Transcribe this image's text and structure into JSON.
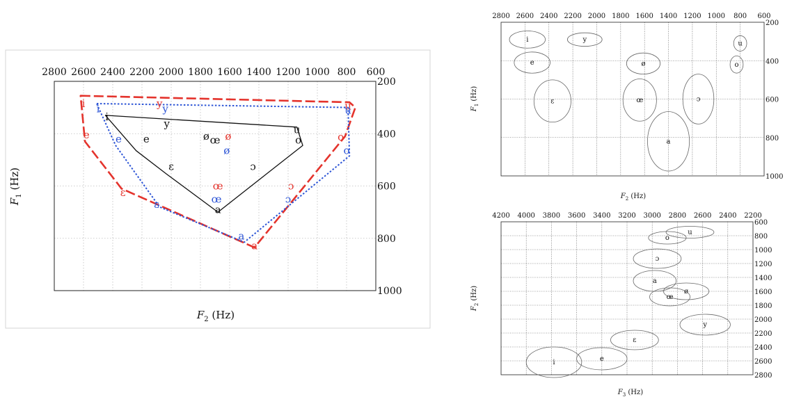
{
  "chart_data": [
    {
      "type": "scatter",
      "xlabel_main": "F",
      "xlabel_sub": "2",
      "xlabel_unit": " (Hz)",
      "ylabel_main": "F",
      "ylabel_sub": "1",
      "ylabel_unit": " (Hz)",
      "xlim": [
        2800,
        600
      ],
      "ylim": [
        200,
        1000
      ],
      "x_ticks": [
        2800,
        2600,
        2400,
        2200,
        2000,
        1800,
        1600,
        1400,
        1200,
        1000,
        800,
        600
      ],
      "y_ticks": [
        200,
        400,
        600,
        800,
        1000
      ],
      "grid": true,
      "colors": {
        "red": "#e4332c",
        "blue": "#2d55d6",
        "black": "#111111"
      },
      "series": [
        {
          "color": "#e4332c",
          "style": "dashed",
          "outline": [
            [
              2620,
              255
            ],
            [
              780,
              280
            ],
            [
              740,
              300
            ],
            [
              810,
              410
            ],
            [
              1430,
              835
            ],
            [
              2340,
              610
            ],
            [
              2590,
              430
            ]
          ],
          "points": [
            {
              "label": "i",
              "x": 2600,
              "y": 285
            },
            {
              "label": "y",
              "x": 2080,
              "y": 285
            },
            {
              "label": "u",
              "x": 790,
              "y": 295
            },
            {
              "label": "e",
              "x": 2580,
              "y": 405
            },
            {
              "label": "ø",
              "x": 1610,
              "y": 410
            },
            {
              "label": "o",
              "x": 840,
              "y": 412
            },
            {
              "label": "ɛ",
              "x": 2330,
              "y": 625
            },
            {
              "label": "œ",
              "x": 1680,
              "y": 600
            },
            {
              "label": "ɔ",
              "x": 1180,
              "y": 600
            },
            {
              "label": "a",
              "x": 1430,
              "y": 828
            }
          ]
        },
        {
          "color": "#2d55d6",
          "style": "dotted",
          "outline": [
            [
              2510,
              285
            ],
            [
              790,
              300
            ],
            [
              780,
              485
            ],
            [
              1500,
              815
            ],
            [
              2080,
              680
            ],
            [
              2380,
              445
            ]
          ],
          "points": [
            {
              "label": "i",
              "x": 2500,
              "y": 305
            },
            {
              "label": "y",
              "x": 2040,
              "y": 305
            },
            {
              "label": "u",
              "x": 790,
              "y": 310
            },
            {
              "label": "e",
              "x": 2360,
              "y": 420
            },
            {
              "label": "ø",
              "x": 1620,
              "y": 465
            },
            {
              "label": "o",
              "x": 800,
              "y": 465
            },
            {
              "label": "ɛ",
              "x": 2100,
              "y": 670
            },
            {
              "label": "œ",
              "x": 1690,
              "y": 650
            },
            {
              "label": "ɔ",
              "x": 1200,
              "y": 650
            },
            {
              "label": "a",
              "x": 1520,
              "y": 792
            }
          ]
        },
        {
          "color": "#111111",
          "style": "solid",
          "outline": [
            [
              2450,
              330
            ],
            [
              1140,
              375
            ],
            [
              1100,
              445
            ],
            [
              1680,
              700
            ],
            [
              2030,
              555
            ],
            [
              2240,
              465
            ]
          ],
          "points": [
            {
              "label": "i",
              "x": 2440,
              "y": 335
            },
            {
              "label": "y",
              "x": 2030,
              "y": 362
            },
            {
              "label": "u",
              "x": 1140,
              "y": 385
            },
            {
              "label": "e",
              "x": 2170,
              "y": 420
            },
            {
              "label": "ø",
              "x": 1760,
              "y": 410
            },
            {
              "label": "œ",
              "x": 1700,
              "y": 425
            },
            {
              "label": "o",
              "x": 1130,
              "y": 425
            },
            {
              "label": "ɛ",
              "x": 2000,
              "y": 525
            },
            {
              "label": "ɔ",
              "x": 1440,
              "y": 525
            },
            {
              "label": "a",
              "x": 1680,
              "y": 690
            }
          ]
        }
      ]
    },
    {
      "type": "scatter",
      "xlabel_main": "F",
      "xlabel_sub": "2",
      "xlabel_unit": " (Hz)",
      "ylabel_main": "F",
      "ylabel_sub": "1",
      "ylabel_unit": " (Hz)",
      "xlim": [
        2800,
        600
      ],
      "ylim": [
        200,
        1000
      ],
      "x_ticks": [
        2800,
        2600,
        2400,
        2200,
        2000,
        1800,
        1600,
        1400,
        1200,
        1000,
        800,
        600
      ],
      "y_ticks": [
        200,
        400,
        600,
        800,
        1000
      ],
      "grid": true,
      "points": [
        {
          "label": "i",
          "x": 2580,
          "y": 290,
          "sdx": 150,
          "sdy": 45
        },
        {
          "label": "y",
          "x": 2100,
          "y": 290,
          "sdx": 145,
          "sdy": 35
        },
        {
          "label": "u",
          "x": 800,
          "y": 310,
          "sdx": 55,
          "sdy": 40
        },
        {
          "label": "e",
          "x": 2540,
          "y": 410,
          "sdx": 150,
          "sdy": 55
        },
        {
          "label": "ø",
          "x": 1610,
          "y": 415,
          "sdx": 140,
          "sdy": 55
        },
        {
          "label": "o",
          "x": 830,
          "y": 420,
          "sdx": 55,
          "sdy": 45
        },
        {
          "label": "ɛ",
          "x": 2370,
          "y": 610,
          "sdx": 155,
          "sdy": 110
        },
        {
          "label": "œ",
          "x": 1640,
          "y": 605,
          "sdx": 140,
          "sdy": 110
        },
        {
          "label": "ɔ",
          "x": 1150,
          "y": 600,
          "sdx": 130,
          "sdy": 130
        },
        {
          "label": "a",
          "x": 1400,
          "y": 820,
          "sdx": 175,
          "sdy": 155
        }
      ]
    },
    {
      "type": "scatter",
      "xlabel_main": "F",
      "xlabel_sub": "3",
      "xlabel_unit": " (Hz)",
      "ylabel_main": "F",
      "ylabel_sub": "2",
      "ylabel_unit": " (Hz)",
      "xlim": [
        4200,
        2200
      ],
      "ylim": [
        600,
        2800
      ],
      "x_ticks": [
        4200,
        4000,
        3800,
        3600,
        3400,
        3200,
        3000,
        2800,
        2600,
        2400,
        2200
      ],
      "y_ticks": [
        600,
        800,
        1000,
        1200,
        1400,
        1600,
        1800,
        2000,
        2200,
        2400,
        2600,
        2800
      ],
      "grid": true,
      "points": [
        {
          "label": "u",
          "x": 2700,
          "y": 750,
          "sdx": 190,
          "sdy": 85
        },
        {
          "label": "o",
          "x": 2880,
          "y": 830,
          "sdx": 150,
          "sdy": 90
        },
        {
          "label": "ɔ",
          "x": 2960,
          "y": 1130,
          "sdx": 190,
          "sdy": 140
        },
        {
          "label": "a",
          "x": 2980,
          "y": 1450,
          "sdx": 170,
          "sdy": 150
        },
        {
          "label": "ø",
          "x": 2730,
          "y": 1600,
          "sdx": 180,
          "sdy": 120
        },
        {
          "label": "œ",
          "x": 2860,
          "y": 1680,
          "sdx": 160,
          "sdy": 130
        },
        {
          "label": "y",
          "x": 2580,
          "y": 2080,
          "sdx": 200,
          "sdy": 150
        },
        {
          "label": "ɛ",
          "x": 3140,
          "y": 2300,
          "sdx": 190,
          "sdy": 140
        },
        {
          "label": "e",
          "x": 3400,
          "y": 2570,
          "sdx": 200,
          "sdy": 160
        },
        {
          "label": "i",
          "x": 3780,
          "y": 2620,
          "sdx": 220,
          "sdy": 220
        }
      ]
    }
  ]
}
